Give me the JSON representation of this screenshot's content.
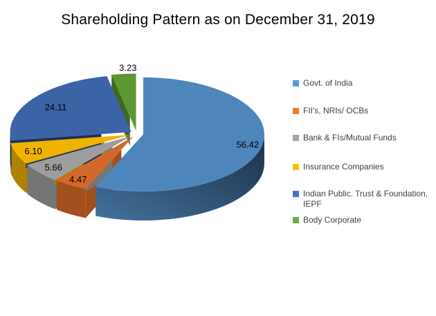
{
  "title": "Shareholding Pattern as on December 31, 2019",
  "chart_data": {
    "type": "pie",
    "style": "3d-exploded-pie",
    "title": "Shareholding Pattern as on December 31, 2019",
    "categories": [
      "Govt. of India",
      "FII's, NRIs/ OCBs",
      "Bank & FIs/Mutual Funds",
      "Insurance Companies",
      "Indian Public. Trust & Foundation, IEPF",
      "Body Corporate"
    ],
    "values": [
      56.42,
      4.47,
      5.66,
      6.1,
      24.11,
      3.23
    ],
    "data_labels": [
      "56.42",
      "4.47",
      "5.66",
      "6.10",
      "24.11",
      "3.23"
    ],
    "unit": "percent",
    "start_angle": "12 o'clock, clockwise",
    "legend_position": "right",
    "colors": {
      "tops": [
        "#4E86BC",
        "#D2682A",
        "#9D9D9D",
        "#EFB300",
        "#3B63A6",
        "#5D9732"
      ],
      "sides": [
        "#27476B",
        "#A34F1D",
        "#757575",
        "#AD8300",
        "#1C3156",
        "#3F6723"
      ],
      "blue_side_gradient": [
        "#1B3048",
        "#44719B"
      ],
      "label_color": "#000000",
      "title_color": "#000000",
      "legend_text_color": "#404040"
    }
  },
  "legend": {
    "items": [
      {
        "line1": "Govt. of India",
        "color": "#5B9BD5"
      },
      {
        "line1": "FII's, NRIs/ OCBs",
        "color": "#ED7D31"
      },
      {
        "line1": "Bank & FIs/Mutual Funds",
        "color": "#A5A5A5"
      },
      {
        "line1": "Insurance Companies",
        "color": "#FFC000"
      },
      {
        "line1": "Indian Public. Trust & Foundation,",
        "line2": "IEPF",
        "color": "#4472C4"
      },
      {
        "line1": "Body Corporate",
        "color": "#70AD47"
      }
    ]
  }
}
